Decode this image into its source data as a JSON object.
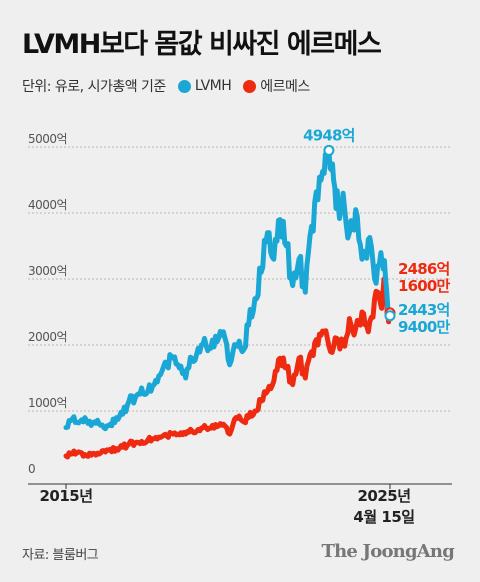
{
  "title": "LVMH보다 몸값 비싸진 에르메스",
  "legend": {
    "unit_label": "단위: 유로, 시가총액 기준",
    "lvmh_label": "LVMH",
    "hermes_label": "에르메스"
  },
  "source": "자료: 블룸버그",
  "brand": "The JoongAng",
  "colors": {
    "lvmh": "#1ba7d6",
    "hermes": "#ee2a10",
    "background": "#efefef"
  },
  "chart_data": {
    "type": "line",
    "title": "LVMH보다 몸값 비싸진 에르메스",
    "xlabel": "",
    "ylabel": "",
    "unit": "억 유로",
    "x_range": [
      2015.0,
      2025.29
    ],
    "ylim": [
      0,
      5000
    ],
    "y_ticks": [
      0,
      1000,
      2000,
      3000,
      4000,
      5000
    ],
    "y_tick_labels": [
      "0",
      "1000억",
      "2000억",
      "3000억",
      "4000억",
      "5000억"
    ],
    "x_tick_labels": [
      "2015년",
      "2025년",
      "4월 15일"
    ],
    "grid": true,
    "legend_position": "top-left",
    "series": [
      {
        "name": "LVMH",
        "color": "#1ba7d6",
        "x": [
          2015.0,
          2015.2,
          2015.4,
          2015.6,
          2015.8,
          2016.0,
          2016.2,
          2016.4,
          2016.6,
          2016.8,
          2017.0,
          2017.2,
          2017.4,
          2017.6,
          2017.8,
          2018.0,
          2018.2,
          2018.4,
          2018.6,
          2018.8,
          2019.0,
          2019.2,
          2019.4,
          2019.6,
          2019.8,
          2020.0,
          2020.2,
          2020.4,
          2020.6,
          2020.8,
          2021.0,
          2021.2,
          2021.4,
          2021.6,
          2021.8,
          2022.0,
          2022.2,
          2022.4,
          2022.6,
          2022.8,
          2023.0,
          2023.2,
          2023.35,
          2023.5,
          2023.65,
          2023.8,
          2024.0,
          2024.2,
          2024.4,
          2024.6,
          2024.8,
          2025.0,
          2025.15,
          2025.29
        ],
        "values": [
          750,
          880,
          820,
          900,
          780,
          860,
          750,
          800,
          900,
          950,
          1150,
          1200,
          1350,
          1300,
          1400,
          1550,
          1700,
          1800,
          1650,
          1500,
          1800,
          1950,
          2100,
          1950,
          2050,
          2200,
          1700,
          2000,
          1900,
          2300,
          2700,
          3100,
          3700,
          3300,
          3900,
          3500,
          2900,
          3300,
          2800,
          3800,
          4200,
          4600,
          4948,
          4500,
          4100,
          4300,
          3700,
          4050,
          3300,
          3600,
          3000,
          3400,
          3000,
          2443.94
        ]
      },
      {
        "name": "에르메스",
        "color": "#ee2a10",
        "x": [
          2015.0,
          2015.2,
          2015.4,
          2015.6,
          2015.8,
          2016.0,
          2016.2,
          2016.4,
          2016.6,
          2016.8,
          2017.0,
          2017.2,
          2017.4,
          2017.6,
          2017.8,
          2018.0,
          2018.2,
          2018.4,
          2018.6,
          2018.8,
          2019.0,
          2019.2,
          2019.4,
          2019.6,
          2019.8,
          2020.0,
          2020.2,
          2020.4,
          2020.6,
          2020.8,
          2021.0,
          2021.2,
          2021.4,
          2021.6,
          2021.8,
          2022.0,
          2022.2,
          2022.4,
          2022.6,
          2022.8,
          2023.0,
          2023.2,
          2023.4,
          2023.6,
          2023.8,
          2024.0,
          2024.2,
          2024.4,
          2024.6,
          2024.8,
          2025.0,
          2025.1,
          2025.2,
          2025.29
        ],
        "values": [
          320,
          350,
          380,
          340,
          330,
          360,
          400,
          420,
          430,
          450,
          500,
          520,
          540,
          560,
          580,
          600,
          620,
          650,
          640,
          650,
          700,
          720,
          780,
          740,
          760,
          800,
          650,
          900,
          850,
          900,
          1000,
          1150,
          1300,
          1450,
          1800,
          1650,
          1400,
          1800,
          1500,
          1900,
          2000,
          2200,
          1900,
          2100,
          2000,
          2400,
          2250,
          2500,
          2200,
          2700,
          2600,
          3000,
          2500,
          2486.16
        ]
      }
    ],
    "annotations": [
      {
        "text": "4948억",
        "series": "LVMH",
        "x": 2023.35,
        "y": 4948
      },
      {
        "text": "2486억\n1600만",
        "series": "에르메스",
        "x": 2025.29,
        "y": 2486.16
      },
      {
        "text": "2443억\n9400만",
        "series": "LVMH",
        "x": 2025.29,
        "y": 2443.94
      }
    ]
  }
}
